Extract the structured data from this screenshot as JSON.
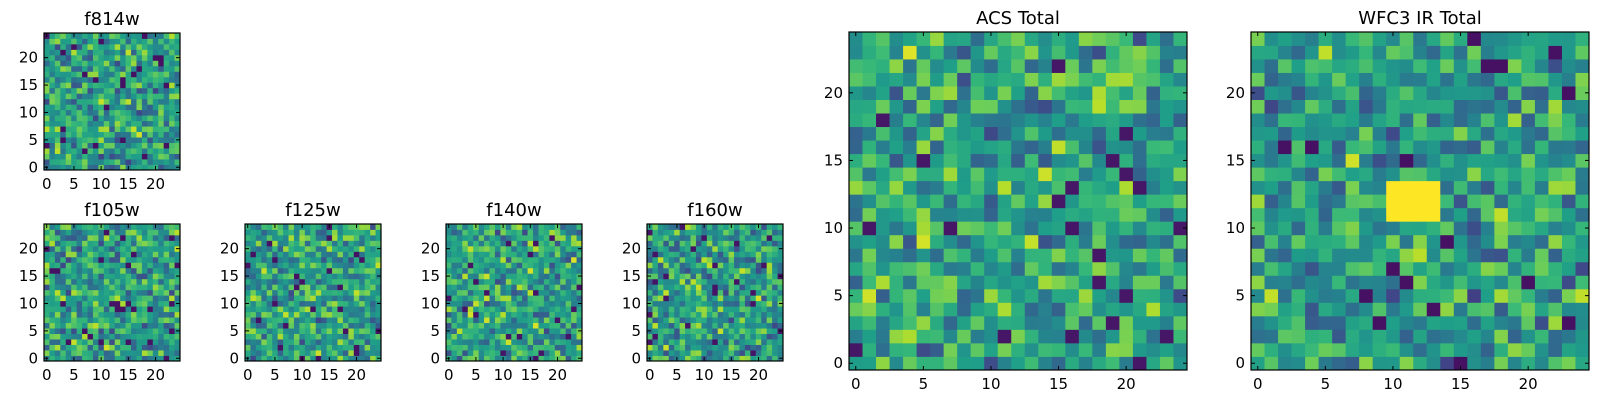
{
  "chart_data": [
    {
      "id": "f814w",
      "type": "heatmap",
      "title": "f814w",
      "size": 25,
      "seed": 11,
      "colormap": "viridis",
      "xticks": [
        0,
        5,
        10,
        15,
        20
      ],
      "yticks": [
        0,
        5,
        10,
        15,
        20
      ],
      "hotspot": null,
      "bias": 0.45
    },
    {
      "id": "f105w",
      "type": "heatmap",
      "title": "f105w",
      "size": 25,
      "seed": 23,
      "colormap": "viridis",
      "xticks": [
        0,
        5,
        10,
        15,
        20
      ],
      "yticks": [
        0,
        5,
        10,
        15,
        20
      ],
      "hotspot": null,
      "bias": 0.5
    },
    {
      "id": "f125w",
      "type": "heatmap",
      "title": "f125w",
      "size": 25,
      "seed": 37,
      "colormap": "viridis",
      "xticks": [
        0,
        5,
        10,
        15,
        20
      ],
      "yticks": [
        0,
        5,
        10,
        15,
        20
      ],
      "hotspot": null,
      "bias": 0.5
    },
    {
      "id": "f140w",
      "type": "heatmap",
      "title": "f140w",
      "size": 25,
      "seed": 41,
      "colormap": "viridis",
      "xticks": [
        0,
        5,
        10,
        15,
        20
      ],
      "yticks": [
        0,
        5,
        10,
        15,
        20
      ],
      "hotspot": null,
      "bias": 0.55
    },
    {
      "id": "f160w",
      "type": "heatmap",
      "title": "f160w",
      "size": 25,
      "seed": 59,
      "colormap": "viridis",
      "xticks": [
        0,
        5,
        10,
        15,
        20
      ],
      "yticks": [
        0,
        5,
        10,
        15,
        20
      ],
      "hotspot": null,
      "bias": 0.55
    },
    {
      "id": "acs_total",
      "type": "heatmap",
      "title": "ACS Total",
      "size": 25,
      "seed": 71,
      "colormap": "viridis",
      "xticks": [
        0,
        5,
        10,
        15,
        20
      ],
      "yticks": [
        0,
        5,
        10,
        15,
        20
      ],
      "hotspot": null,
      "bias": 0.6
    },
    {
      "id": "wfc3_ir_total",
      "type": "heatmap",
      "title": "WFC3 IR Total",
      "size": 25,
      "seed": 83,
      "colormap": "viridis",
      "xticks": [
        0,
        5,
        10,
        15,
        20
      ],
      "yticks": [
        0,
        5,
        10,
        15,
        20
      ],
      "hotspot": {
        "x0": 10,
        "x1": 13,
        "y0": 11,
        "y1": 13
      },
      "bias": 0.45
    }
  ]
}
